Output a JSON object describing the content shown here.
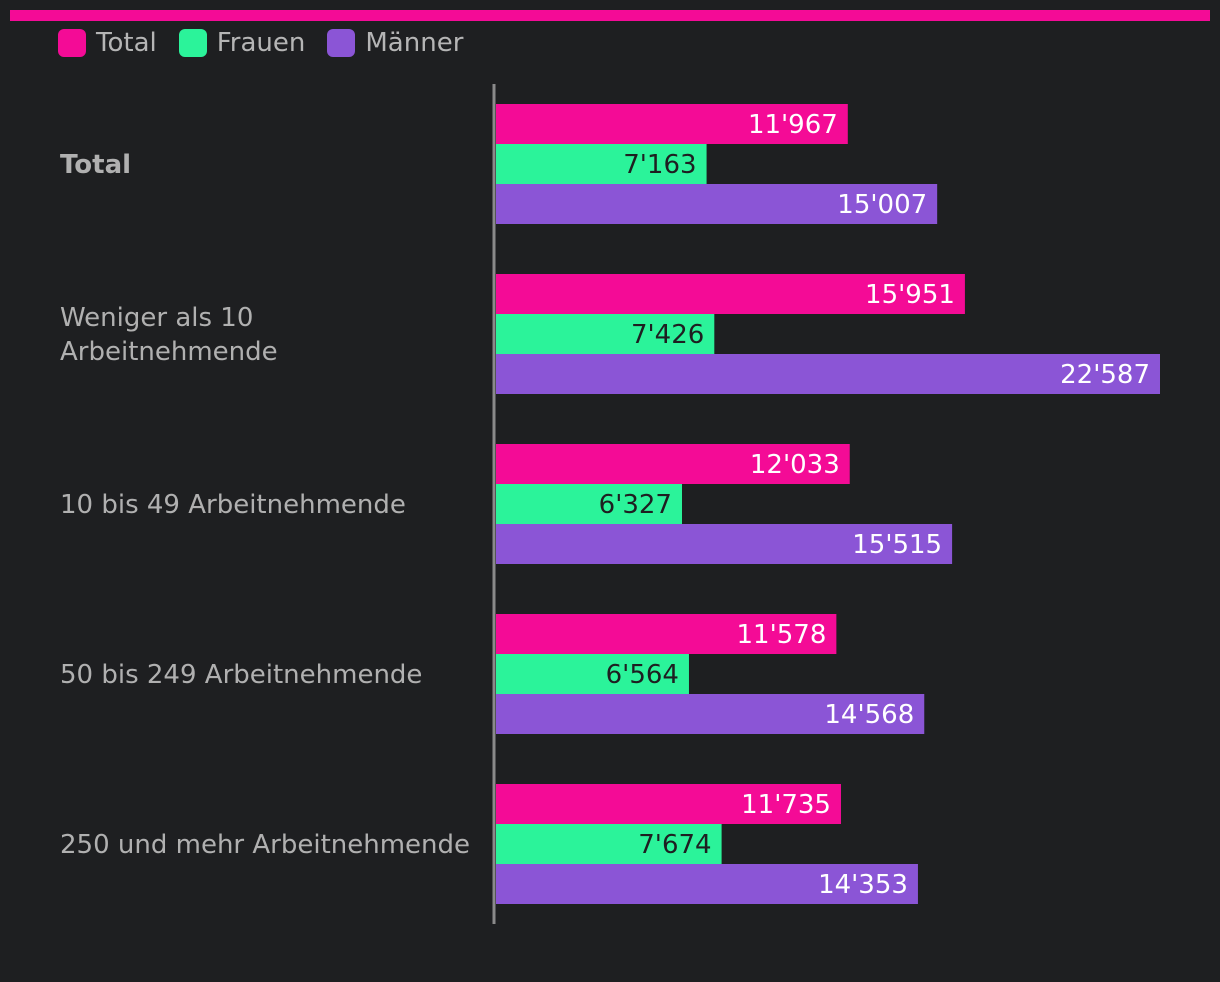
{
  "colors": {
    "total": "#f40b96",
    "frauen": "#2bf39a",
    "maenner": "#8b55d6",
    "label": "#b0b0b0",
    "axis": "#8a8a8a",
    "value_light": "#ffffff",
    "value_dark": "#1e1f21"
  },
  "chart_data": {
    "type": "bar",
    "orientation": "horizontal",
    "title": "",
    "xlabel": "",
    "ylabel": "",
    "xlim": [
      0,
      22587
    ],
    "legend_position": "top-left",
    "grid": false,
    "categories": [
      [
        "Total"
      ],
      [
        "Weniger als 10",
        "Arbeitnehmende"
      ],
      [
        "10 bis 49 Arbeitnehmende"
      ],
      [
        "50 bis 249 Arbeitnehmende"
      ],
      [
        "250 und mehr Arbeitnehmende"
      ]
    ],
    "category_bold": [
      true,
      false,
      false,
      false,
      false
    ],
    "series": [
      {
        "name": "Total",
        "color_key": "total",
        "values": [
          11967,
          15951,
          12033,
          11578,
          11735
        ],
        "labels": [
          "11'967",
          "15'951",
          "12'033",
          "11'578",
          "11'735"
        ]
      },
      {
        "name": "Frauen",
        "color_key": "frauen",
        "values": [
          7163,
          7426,
          6327,
          6564,
          7674
        ],
        "labels": [
          "7'163",
          "7'426",
          "6'327",
          "6'564",
          "7'674"
        ]
      },
      {
        "name": "Männer",
        "color_key": "maenner",
        "values": [
          15007,
          22587,
          15515,
          14568,
          14353
        ],
        "labels": [
          "15'007",
          "22'587",
          "15'515",
          "14'568",
          "14'353"
        ]
      }
    ]
  }
}
